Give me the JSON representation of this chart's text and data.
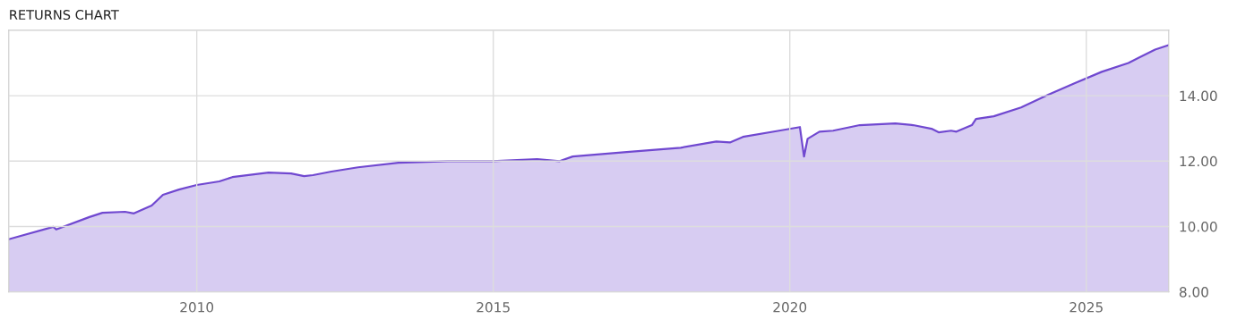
{
  "chart_data": {
    "type": "area",
    "title": "RETURNS CHART",
    "x": [
      2006.83,
      2007.58,
      2007.63,
      2008.19,
      2008.41,
      2008.79,
      2008.94,
      2009.24,
      2009.43,
      2009.7,
      2010.0,
      2010.38,
      2010.6,
      2011.21,
      2011.59,
      2011.81,
      2011.96,
      2012.27,
      2012.72,
      2013.4,
      2014.23,
      2014.98,
      2015.74,
      2016.12,
      2016.34,
      2017.25,
      2018.16,
      2018.76,
      2018.99,
      2019.21,
      2019.82,
      2020.17,
      2020.24,
      2020.3,
      2020.5,
      2020.73,
      2021.18,
      2021.78,
      2022.08,
      2022.39,
      2022.51,
      2022.72,
      2022.81,
      2023.07,
      2023.14,
      2023.44,
      2023.9,
      2024.35,
      2024.8,
      2025.26,
      2025.71,
      2026.16,
      2026.39
    ],
    "series": [
      {
        "color": "#7048d0",
        "values": [
          9.61,
          9.99,
          9.91,
          10.29,
          10.42,
          10.45,
          10.4,
          10.64,
          10.97,
          11.13,
          11.27,
          11.38,
          11.51,
          11.65,
          11.62,
          11.54,
          11.57,
          11.68,
          11.81,
          11.95,
          12.0,
          12.0,
          12.06,
          12.0,
          12.14,
          12.28,
          12.41,
          12.6,
          12.57,
          12.74,
          12.93,
          13.04,
          12.14,
          12.68,
          12.9,
          12.93,
          13.1,
          13.15,
          13.1,
          12.99,
          12.88,
          12.93,
          12.9,
          13.1,
          13.29,
          13.37,
          13.64,
          14.02,
          14.38,
          14.73,
          15.0,
          15.41,
          15.55
        ]
      }
    ],
    "xlim": [
      2006.83,
      2026.39
    ],
    "xticks": [
      2010,
      2015,
      2020,
      2025
    ],
    "ylim": [
      8,
      16
    ],
    "yticks": [
      {
        "value": 8,
        "label": "8.00"
      },
      {
        "value": 10,
        "label": "10.00"
      },
      {
        "value": 12,
        "label": "12.00"
      },
      {
        "value": 14,
        "label": "14.00"
      }
    ],
    "grid": true,
    "legend": false
  }
}
